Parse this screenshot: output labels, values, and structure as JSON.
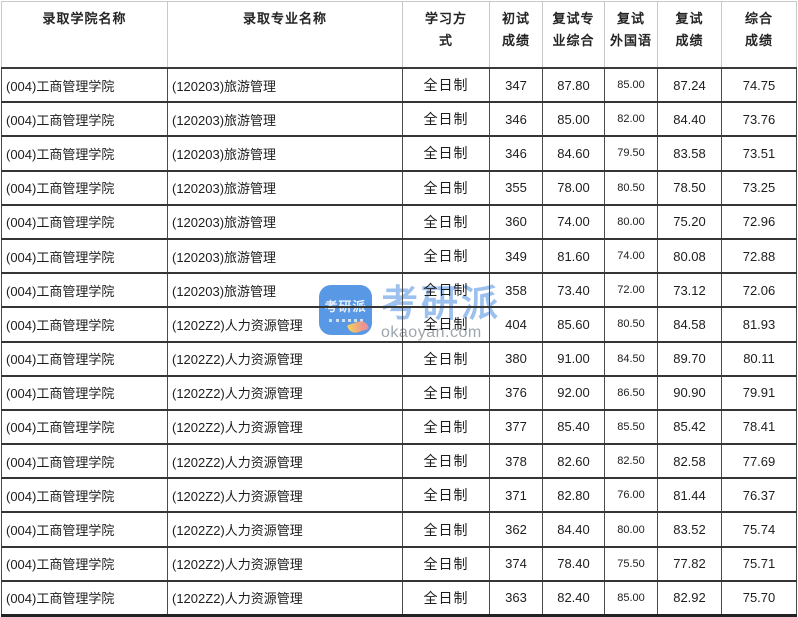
{
  "table": {
    "columns": [
      {
        "key": "college",
        "label": "录取学院名称"
      },
      {
        "key": "major",
        "label": "录取专业名称"
      },
      {
        "key": "study_mode",
        "label": "学习方\n式"
      },
      {
        "key": "initial_score",
        "label": "初试\n成绩"
      },
      {
        "key": "retest_major_comprehensive",
        "label": "复试专\n业综合"
      },
      {
        "key": "retest_foreign_language",
        "label": "复试\n外国语"
      },
      {
        "key": "retest_score",
        "label": "复试\n成绩"
      },
      {
        "key": "comprehensive_score",
        "label": "综合\n成绩"
      }
    ],
    "rows": [
      [
        "(004)工商管理学院",
        "(120203)旅游管理",
        "全日制",
        "347",
        "87.80",
        "85.00",
        "87.24",
        "74.75"
      ],
      [
        "(004)工商管理学院",
        "(120203)旅游管理",
        "全日制",
        "346",
        "85.00",
        "82.00",
        "84.40",
        "73.76"
      ],
      [
        "(004)工商管理学院",
        "(120203)旅游管理",
        "全日制",
        "346",
        "84.60",
        "79.50",
        "83.58",
        "73.51"
      ],
      [
        "(004)工商管理学院",
        "(120203)旅游管理",
        "全日制",
        "355",
        "78.00",
        "80.50",
        "78.50",
        "73.25"
      ],
      [
        "(004)工商管理学院",
        "(120203)旅游管理",
        "全日制",
        "360",
        "74.00",
        "80.00",
        "75.20",
        "72.96"
      ],
      [
        "(004)工商管理学院",
        "(120203)旅游管理",
        "全日制",
        "349",
        "81.60",
        "74.00",
        "80.08",
        "72.88"
      ],
      [
        "(004)工商管理学院",
        "(120203)旅游管理",
        "全日制",
        "358",
        "73.40",
        "72.00",
        "73.12",
        "72.06"
      ],
      [
        "(004)工商管理学院",
        "(1202Z2)人力资源管理",
        "全日制",
        "404",
        "85.60",
        "80.50",
        "84.58",
        "81.93"
      ],
      [
        "(004)工商管理学院",
        "(1202Z2)人力资源管理",
        "全日制",
        "380",
        "91.00",
        "84.50",
        "89.70",
        "80.11"
      ],
      [
        "(004)工商管理学院",
        "(1202Z2)人力资源管理",
        "全日制",
        "376",
        "92.00",
        "86.50",
        "90.90",
        "79.91"
      ],
      [
        "(004)工商管理学院",
        "(1202Z2)人力资源管理",
        "全日制",
        "377",
        "85.40",
        "85.50",
        "85.42",
        "78.41"
      ],
      [
        "(004)工商管理学院",
        "(1202Z2)人力资源管理",
        "全日制",
        "378",
        "82.60",
        "82.50",
        "82.58",
        "77.69"
      ],
      [
        "(004)工商管理学院",
        "(1202Z2)人力资源管理",
        "全日制",
        "371",
        "82.80",
        "76.00",
        "81.44",
        "76.37"
      ],
      [
        "(004)工商管理学院",
        "(1202Z2)人力资源管理",
        "全日制",
        "362",
        "84.40",
        "80.00",
        "83.52",
        "75.74"
      ],
      [
        "(004)工商管理学院",
        "(1202Z2)人力资源管理",
        "全日制",
        "374",
        "78.40",
        "75.50",
        "77.82",
        "75.71"
      ],
      [
        "(004)工商管理学院",
        "(1202Z2)人力资源管理",
        "全日制",
        "363",
        "82.40",
        "85.00",
        "82.92",
        "75.70"
      ]
    ]
  },
  "watermark": {
    "icon_text": "考研派",
    "brand_text": "考研派",
    "url": "okaoyan.com",
    "icon_bg": "#4a90e2",
    "brand_color": "rgba(77,142,224,0.55)",
    "url_color": "rgba(130,140,150,0.78)"
  }
}
